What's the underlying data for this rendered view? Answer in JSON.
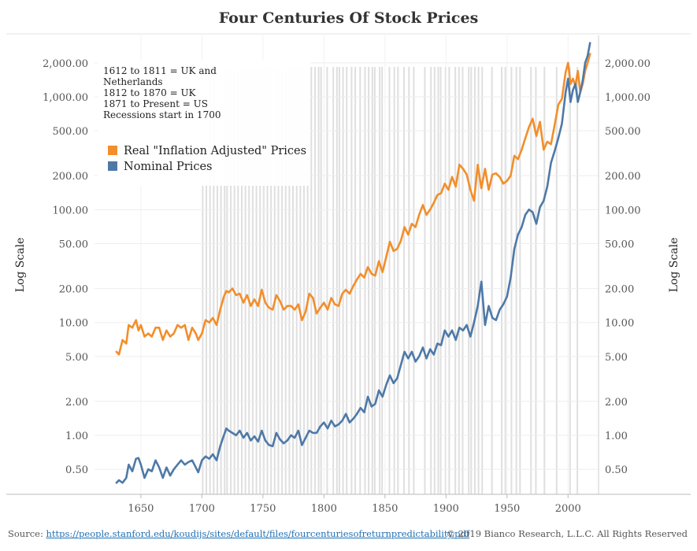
{
  "page_title": "Four Centuries Of Stock Prices",
  "annotation_lines": [
    "1612 to 1811 = UK and",
    "Netherlands",
    "1812 to 1870 = UK",
    "1871 to Present = US",
    "Recessions start in 1700"
  ],
  "footer": {
    "source_label": "Source: ",
    "source_link": "https://people.stanford.edu/koudijs/sites/default/files/fourcenturiesofreturnpredictability.pdf",
    "copyright": "© 2019 Bianco Research, L.L.C. All Rights Reserved"
  },
  "colors": {
    "real": "#f28e2b",
    "nominal": "#4e79a7",
    "recession": "#d9d9d9",
    "axis_text": "#555555"
  },
  "chart_data": {
    "type": "line",
    "title": "Four Centuries Of Stock Prices",
    "xlabel": "",
    "ylabel_left": "Log Scale",
    "ylabel_right": "Log Scale",
    "yscale": "log",
    "xlim": [
      1612,
      2025
    ],
    "ylim": [
      0.3,
      3500
    ],
    "x_ticks": [
      1650,
      1700,
      1750,
      1800,
      1850,
      1900,
      1950,
      2000
    ],
    "y_ticks": [
      0.5,
      1,
      2,
      5,
      10,
      20,
      50,
      100,
      200,
      500,
      1000,
      2000
    ],
    "y_tick_labels": [
      "0.50",
      "1.00",
      "2.00",
      "5.00",
      "10.00",
      "20.00",
      "50.00",
      "100.00",
      "200.00",
      "500.00",
      "1,000.00",
      "2,000.00"
    ],
    "legend_position": "top-left",
    "grid": true,
    "recession_bands": [
      [
        1700,
        1701
      ],
      [
        1703,
        1704
      ],
      [
        1706,
        1707
      ],
      [
        1709,
        1710
      ],
      [
        1712,
        1713
      ],
      [
        1715,
        1716
      ],
      [
        1718,
        1719
      ],
      [
        1720,
        1721
      ],
      [
        1723,
        1724
      ],
      [
        1726,
        1727
      ],
      [
        1729,
        1730
      ],
      [
        1732,
        1733
      ],
      [
        1735,
        1736
      ],
      [
        1738,
        1739
      ],
      [
        1741,
        1742
      ],
      [
        1744,
        1745
      ],
      [
        1747,
        1748
      ],
      [
        1750,
        1751
      ],
      [
        1753,
        1754
      ],
      [
        1756,
        1757
      ],
      [
        1759,
        1760
      ],
      [
        1762,
        1763
      ],
      [
        1765,
        1766
      ],
      [
        1768,
        1769
      ],
      [
        1771,
        1772
      ],
      [
        1774,
        1775
      ],
      [
        1777,
        1778
      ],
      [
        1780,
        1781
      ],
      [
        1783,
        1784
      ],
      [
        1786,
        1787
      ],
      [
        1789,
        1790
      ],
      [
        1792,
        1793
      ],
      [
        1795,
        1796
      ],
      [
        1797,
        1798
      ],
      [
        1802,
        1803
      ],
      [
        1807,
        1808
      ],
      [
        1810,
        1811
      ],
      [
        1812,
        1813
      ],
      [
        1815,
        1816
      ],
      [
        1818,
        1819
      ],
      [
        1822,
        1823
      ],
      [
        1825,
        1826
      ],
      [
        1829,
        1830
      ],
      [
        1833,
        1834
      ],
      [
        1836,
        1837
      ],
      [
        1839,
        1840
      ],
      [
        1841,
        1842
      ],
      [
        1845,
        1846
      ],
      [
        1847,
        1848
      ],
      [
        1853,
        1854
      ],
      [
        1857,
        1858
      ],
      [
        1860,
        1861
      ],
      [
        1865,
        1866
      ],
      [
        1869,
        1870
      ],
      [
        1873,
        1874
      ],
      [
        1882,
        1883
      ],
      [
        1887,
        1888
      ],
      [
        1890,
        1891
      ],
      [
        1893,
        1894
      ],
      [
        1895,
        1896
      ],
      [
        1899,
        1900
      ],
      [
        1902,
        1903
      ],
      [
        1907,
        1908
      ],
      [
        1910,
        1911
      ],
      [
        1913,
        1914
      ],
      [
        1918,
        1919
      ],
      [
        1920,
        1921
      ],
      [
        1923,
        1924
      ],
      [
        1926,
        1927
      ],
      [
        1929,
        1930
      ],
      [
        1937,
        1938
      ],
      [
        1945,
        1946
      ],
      [
        1948,
        1949
      ],
      [
        1953,
        1954
      ],
      [
        1957,
        1958
      ],
      [
        1960,
        1961
      ],
      [
        1969,
        1970
      ],
      [
        1973,
        1974
      ],
      [
        1980,
        1981
      ],
      [
        1990,
        1991
      ],
      [
        2001,
        2002
      ],
      [
        2007,
        2008
      ]
    ],
    "series": [
      {
        "name": "Real \"Inflation Adjusted\" Prices",
        "x": [
          1630,
          1632,
          1635,
          1638,
          1640,
          1643,
          1646,
          1648,
          1650,
          1653,
          1656,
          1659,
          1662,
          1665,
          1668,
          1671,
          1674,
          1677,
          1680,
          1683,
          1686,
          1689,
          1692,
          1695,
          1697,
          1700,
          1703,
          1706,
          1709,
          1712,
          1715,
          1718,
          1720,
          1722,
          1725,
          1728,
          1731,
          1734,
          1737,
          1740,
          1743,
          1746,
          1749,
          1752,
          1755,
          1758,
          1761,
          1764,
          1767,
          1770,
          1773,
          1776,
          1779,
          1782,
          1785,
          1788,
          1791,
          1794,
          1797,
          1800,
          1803,
          1806,
          1809,
          1812,
          1815,
          1818,
          1821,
          1824,
          1827,
          1830,
          1833,
          1836,
          1839,
          1842,
          1845,
          1848,
          1851,
          1854,
          1857,
          1860,
          1863,
          1866,
          1869,
          1872,
          1875,
          1878,
          1881,
          1884,
          1887,
          1890,
          1893,
          1896,
          1899,
          1902,
          1905,
          1908,
          1911,
          1914,
          1917,
          1920,
          1923,
          1926,
          1929,
          1932,
          1935,
          1938,
          1941,
          1944,
          1947,
          1950,
          1953,
          1956,
          1959,
          1962,
          1965,
          1968,
          1971,
          1974,
          1977,
          1980,
          1983,
          1986,
          1989,
          1992,
          1995,
          1998,
          2000,
          2002,
          2004,
          2006,
          2008,
          2010,
          2012,
          2014,
          2016,
          2018
        ],
        "y": [
          5.5,
          5.2,
          7.0,
          6.5,
          9.5,
          9.0,
          10.5,
          8.5,
          9.5,
          7.5,
          8.0,
          7.5,
          9.0,
          9.0,
          7.0,
          8.5,
          7.5,
          8.0,
          9.5,
          9.0,
          9.5,
          7.0,
          9.0,
          8.0,
          7.0,
          8.0,
          10.5,
          10.0,
          11.0,
          9.5,
          13.0,
          17.0,
          19.0,
          18.5,
          20.0,
          17.5,
          18.0,
          15.0,
          17.5,
          14.0,
          16.0,
          14.0,
          19.5,
          15.0,
          13.5,
          13.0,
          17.5,
          15.5,
          13.0,
          14.0,
          14.0,
          13.0,
          14.5,
          10.5,
          12.5,
          18.0,
          16.5,
          12.0,
          13.5,
          15.0,
          13.0,
          16.5,
          14.5,
          14.0,
          18.0,
          19.5,
          18.0,
          21.0,
          24.0,
          27.0,
          25.0,
          31.0,
          27.0,
          26.0,
          35.0,
          28.0,
          38.0,
          52.0,
          43.0,
          45.0,
          53.0,
          70.0,
          60.0,
          75.0,
          70.0,
          90.0,
          110.0,
          90.0,
          100.0,
          115.0,
          135.0,
          140.0,
          170.0,
          150.0,
          195.0,
          160.0,
          250.0,
          230.0,
          205.0,
          150.0,
          120.0,
          250.0,
          155.0,
          230.0,
          150.0,
          205.0,
          210.0,
          195.0,
          170.0,
          180.0,
          200.0,
          300.0,
          280.0,
          340.0,
          430.0,
          540.0,
          640.0,
          450.0,
          600.0,
          340.0,
          400.0,
          380.0,
          560.0,
          850.0,
          960.0,
          1650.0,
          2000.0,
          1300.0,
          1450.0,
          1250.0,
          1700.0,
          1100.0,
          1300.0,
          1700.0,
          2000.0,
          2400.0
        ]
      },
      {
        "name": "Nominal Prices",
        "x": [
          1630,
          1632,
          1635,
          1638,
          1640,
          1643,
          1646,
          1648,
          1650,
          1653,
          1656,
          1659,
          1662,
          1665,
          1668,
          1671,
          1674,
          1677,
          1680,
          1683,
          1686,
          1689,
          1692,
          1695,
          1697,
          1700,
          1703,
          1706,
          1709,
          1712,
          1715,
          1718,
          1720,
          1722,
          1725,
          1728,
          1731,
          1734,
          1737,
          1740,
          1743,
          1746,
          1749,
          1752,
          1755,
          1758,
          1761,
          1764,
          1767,
          1770,
          1773,
          1776,
          1779,
          1782,
          1785,
          1788,
          1791,
          1794,
          1797,
          1800,
          1803,
          1806,
          1809,
          1812,
          1815,
          1818,
          1821,
          1824,
          1827,
          1830,
          1833,
          1836,
          1839,
          1842,
          1845,
          1848,
          1851,
          1854,
          1857,
          1860,
          1863,
          1866,
          1869,
          1872,
          1875,
          1878,
          1881,
          1884,
          1887,
          1890,
          1893,
          1896,
          1899,
          1902,
          1905,
          1908,
          1911,
          1914,
          1917,
          1920,
          1923,
          1926,
          1929,
          1932,
          1935,
          1938,
          1941,
          1944,
          1947,
          1950,
          1953,
          1956,
          1959,
          1962,
          1965,
          1968,
          1971,
          1974,
          1977,
          1980,
          1983,
          1986,
          1989,
          1992,
          1995,
          1998,
          2000,
          2002,
          2004,
          2006,
          2008,
          2010,
          2012,
          2014,
          2016,
          2018
        ],
        "y": [
          0.38,
          0.4,
          0.38,
          0.42,
          0.55,
          0.48,
          0.62,
          0.63,
          0.55,
          0.42,
          0.5,
          0.48,
          0.6,
          0.52,
          0.42,
          0.52,
          0.44,
          0.5,
          0.55,
          0.6,
          0.55,
          0.58,
          0.6,
          0.52,
          0.47,
          0.6,
          0.65,
          0.62,
          0.68,
          0.6,
          0.8,
          1.0,
          1.15,
          1.1,
          1.05,
          1.0,
          1.1,
          0.95,
          1.05,
          0.9,
          0.98,
          0.88,
          1.1,
          0.9,
          0.82,
          0.8,
          1.05,
          0.92,
          0.85,
          0.9,
          1.0,
          0.95,
          1.1,
          0.82,
          0.95,
          1.1,
          1.05,
          1.05,
          1.2,
          1.3,
          1.15,
          1.35,
          1.2,
          1.25,
          1.35,
          1.55,
          1.3,
          1.4,
          1.55,
          1.75,
          1.6,
          2.2,
          1.8,
          1.9,
          2.5,
          2.2,
          2.8,
          3.4,
          2.9,
          3.2,
          4.2,
          5.5,
          4.8,
          5.5,
          4.5,
          5.0,
          6.0,
          4.8,
          5.8,
          5.2,
          6.5,
          6.3,
          8.5,
          7.5,
          8.5,
          7.0,
          9.0,
          8.5,
          9.5,
          7.5,
          10.0,
          14.0,
          23.0,
          9.5,
          14.0,
          11.0,
          10.5,
          13.0,
          14.5,
          17.0,
          25.0,
          45.0,
          60.0,
          70.0,
          90.0,
          100.0,
          95.0,
          75.0,
          105.0,
          120.0,
          160.0,
          260.0,
          330.0,
          430.0,
          580.0,
          1100.0,
          1450.0,
          900.0,
          1150.0,
          1300.0,
          900.0,
          1100.0,
          1400.0,
          2000.0,
          2300.0,
          3000.0
        ]
      }
    ]
  }
}
